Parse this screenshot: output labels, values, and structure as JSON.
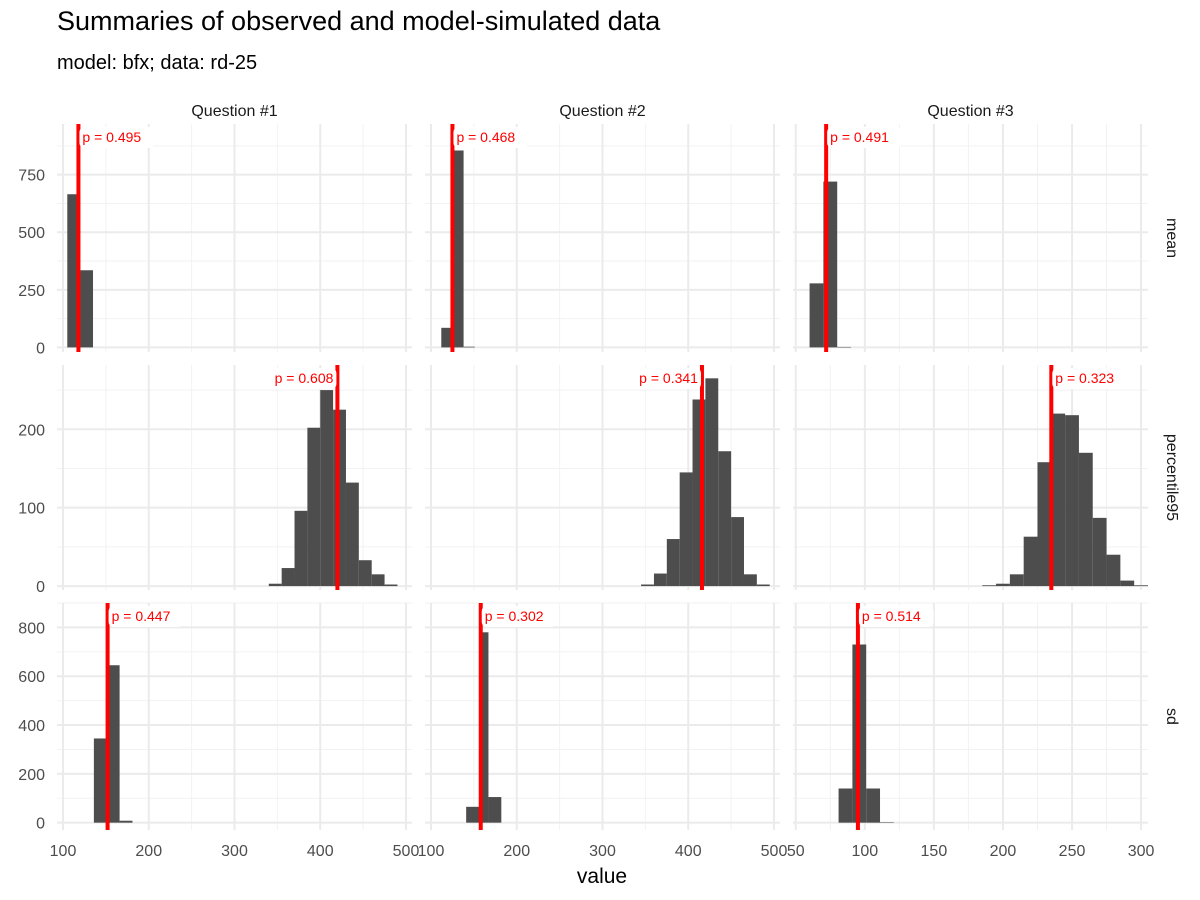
{
  "chart_data": {
    "type": "bar",
    "title": "Summaries of observed and model-simulated data",
    "subtitle": "model: bfx; data: rd-25",
    "xlabel": "value",
    "ylabel": "",
    "grid": true,
    "facet_columns": [
      "Question #1",
      "Question #2",
      "Question #3"
    ],
    "facet_rows": [
      "mean",
      "percentile95",
      "sd"
    ],
    "colors": {
      "bar": "#4d4d4d",
      "observed": "#ff0000",
      "grid": "#ebebeb"
    },
    "x_axes": [
      {
        "column": "Question #1",
        "xlim": [
          93,
          507
        ],
        "ticks": [
          100,
          200,
          300,
          400,
          500
        ]
      },
      {
        "column": "Question #2",
        "xlim": [
          93,
          507
        ],
        "ticks": [
          100,
          200,
          300,
          400,
          500
        ]
      },
      {
        "column": "Question #3",
        "xlim": [
          48,
          305
        ],
        "ticks": [
          50,
          100,
          150,
          200,
          250,
          300
        ]
      }
    ],
    "y_axes": [
      {
        "row": "mean",
        "ylim": [
          -20,
          970
        ],
        "ticks": [
          0,
          250,
          500,
          750
        ]
      },
      {
        "row": "percentile95",
        "ylim": [
          -5,
          282
        ],
        "ticks": [
          0,
          100,
          200
        ]
      },
      {
        "row": "sd",
        "ylim": [
          -30,
          900
        ],
        "ticks": [
          0,
          200,
          400,
          600,
          800
        ]
      }
    ],
    "panels": [
      {
        "row": "mean",
        "column": "Question #1",
        "observed": 118,
        "p_label": "p = 0.495",
        "bins": [
          {
            "x0": 105,
            "x1": 120,
            "count": 665
          },
          {
            "x0": 120,
            "x1": 135,
            "count": 335
          }
        ]
      },
      {
        "row": "mean",
        "column": "Question #2",
        "observed": 125,
        "p_label": "p = 0.468",
        "bins": [
          {
            "x0": 112,
            "x1": 125,
            "count": 85
          },
          {
            "x0": 125,
            "x1": 138,
            "count": 855
          },
          {
            "x0": 138,
            "x1": 151,
            "count": 3
          }
        ]
      },
      {
        "row": "mean",
        "column": "Question #3",
        "observed": 72,
        "p_label": "p = 0.491",
        "bins": [
          {
            "x0": 60,
            "x1": 70,
            "count": 278
          },
          {
            "x0": 70,
            "x1": 80,
            "count": 720
          },
          {
            "x0": 80,
            "x1": 90,
            "count": 2
          }
        ]
      },
      {
        "row": "percentile95",
        "column": "Question #1",
        "observed": 420,
        "p_label": "p = 0.608",
        "bins": [
          {
            "x0": 340,
            "x1": 355,
            "count": 3
          },
          {
            "x0": 355,
            "x1": 370,
            "count": 23
          },
          {
            "x0": 370,
            "x1": 385,
            "count": 96
          },
          {
            "x0": 385,
            "x1": 400,
            "count": 202
          },
          {
            "x0": 400,
            "x1": 415,
            "count": 250
          },
          {
            "x0": 415,
            "x1": 430,
            "count": 225
          },
          {
            "x0": 430,
            "x1": 445,
            "count": 132
          },
          {
            "x0": 445,
            "x1": 460,
            "count": 33
          },
          {
            "x0": 460,
            "x1": 475,
            "count": 15
          },
          {
            "x0": 475,
            "x1": 490,
            "count": 2
          }
        ]
      },
      {
        "row": "percentile95",
        "column": "Question #2",
        "observed": 416,
        "p_label": "p = 0.341",
        "bins": [
          {
            "x0": 345,
            "x1": 360,
            "count": 2
          },
          {
            "x0": 360,
            "x1": 375,
            "count": 16
          },
          {
            "x0": 375,
            "x1": 390,
            "count": 60
          },
          {
            "x0": 390,
            "x1": 405,
            "count": 145
          },
          {
            "x0": 405,
            "x1": 420,
            "count": 238
          },
          {
            "x0": 420,
            "x1": 435,
            "count": 265
          },
          {
            "x0": 435,
            "x1": 450,
            "count": 172
          },
          {
            "x0": 450,
            "x1": 465,
            "count": 88
          },
          {
            "x0": 465,
            "x1": 480,
            "count": 15
          },
          {
            "x0": 480,
            "x1": 495,
            "count": 2
          }
        ]
      },
      {
        "row": "percentile95",
        "column": "Question #3",
        "observed": 235,
        "p_label": "p = 0.323",
        "bins": [
          {
            "x0": 185,
            "x1": 195,
            "count": 1
          },
          {
            "x0": 195,
            "x1": 205,
            "count": 3
          },
          {
            "x0": 205,
            "x1": 215,
            "count": 15
          },
          {
            "x0": 215,
            "x1": 225,
            "count": 63
          },
          {
            "x0": 225,
            "x1": 235,
            "count": 158
          },
          {
            "x0": 235,
            "x1": 245,
            "count": 220
          },
          {
            "x0": 245,
            "x1": 255,
            "count": 218
          },
          {
            "x0": 255,
            "x1": 265,
            "count": 170
          },
          {
            "x0": 265,
            "x1": 275,
            "count": 87
          },
          {
            "x0": 275,
            "x1": 285,
            "count": 40
          },
          {
            "x0": 285,
            "x1": 295,
            "count": 7
          },
          {
            "x0": 295,
            "x1": 305,
            "count": 1
          }
        ]
      },
      {
        "row": "sd",
        "column": "Question #1",
        "observed": 152,
        "p_label": "p = 0.447",
        "bins": [
          {
            "x0": 136,
            "x1": 151,
            "count": 345
          },
          {
            "x0": 151,
            "x1": 166,
            "count": 645
          },
          {
            "x0": 166,
            "x1": 181,
            "count": 8
          }
        ]
      },
      {
        "row": "sd",
        "column": "Question #2",
        "observed": 158,
        "p_label": "p = 0.302",
        "bins": [
          {
            "x0": 141,
            "x1": 156,
            "count": 65
          },
          {
            "x0": 156,
            "x1": 167,
            "count": 780
          },
          {
            "x0": 167,
            "x1": 182,
            "count": 105
          }
        ]
      },
      {
        "row": "sd",
        "column": "Question #3",
        "observed": 95,
        "p_label": "p = 0.514",
        "bins": [
          {
            "x0": 81,
            "x1": 91,
            "count": 140
          },
          {
            "x0": 91,
            "x1": 101,
            "count": 730
          },
          {
            "x0": 101,
            "x1": 111,
            "count": 140
          },
          {
            "x0": 111,
            "x1": 121,
            "count": 2
          }
        ]
      }
    ]
  }
}
